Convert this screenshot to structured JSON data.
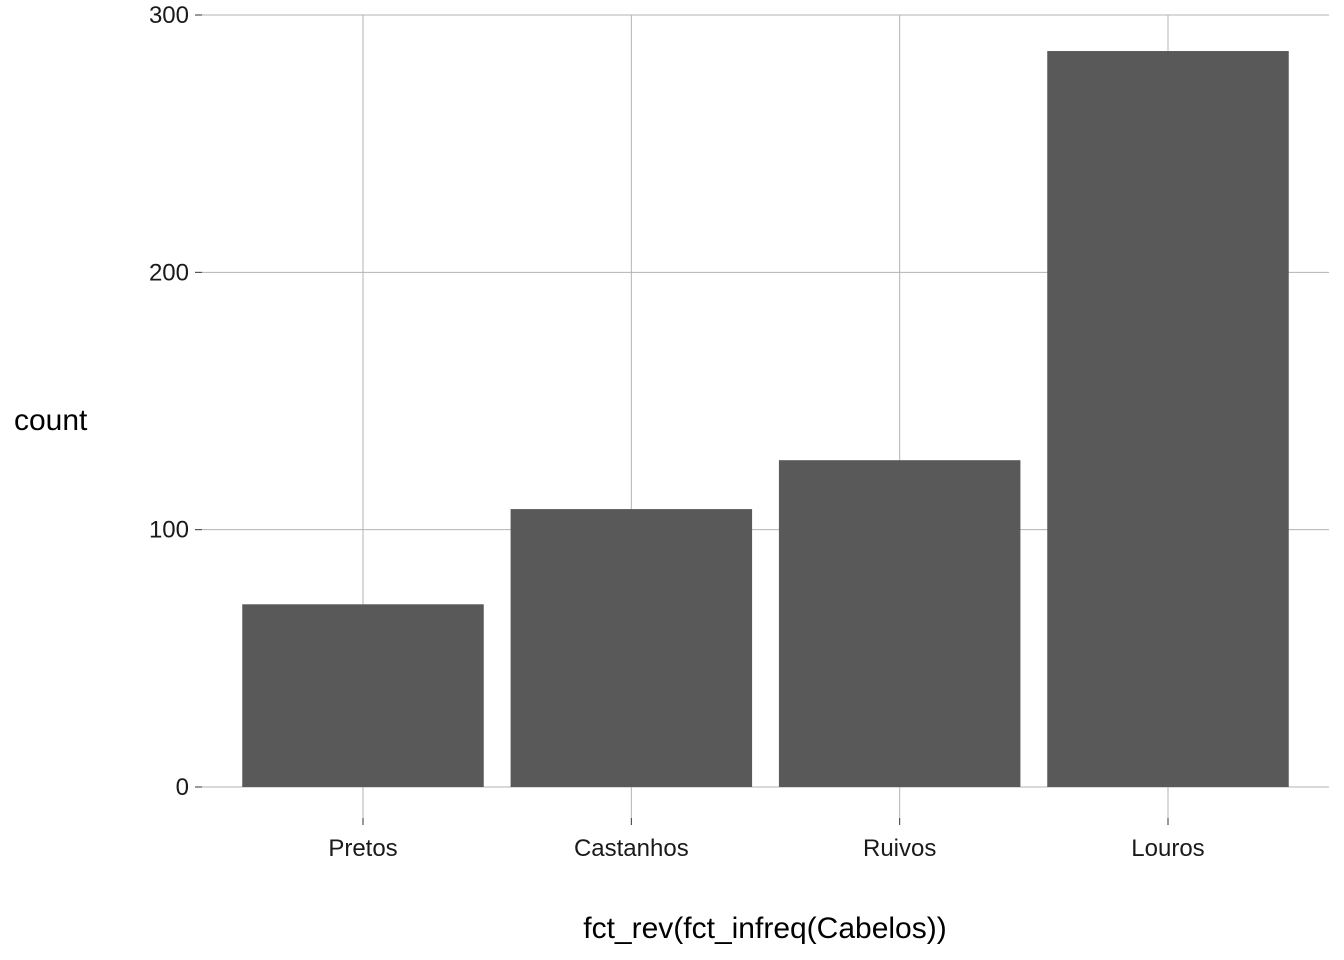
{
  "chart_data": {
    "type": "bar",
    "title": "",
    "xlabel": "fct_rev(fct_infreq(Cabelos))",
    "ylabel": "count",
    "categories": [
      "Pretos",
      "Castanhos",
      "Ruivos",
      "Louros"
    ],
    "values": [
      71,
      108,
      127,
      286
    ],
    "ylim": [
      -11,
      300
    ],
    "yticks": [
      0,
      100,
      200,
      300
    ],
    "grid": true,
    "legend": "none",
    "bar_color": "#595959",
    "grid_color": "#b3b3b3"
  }
}
